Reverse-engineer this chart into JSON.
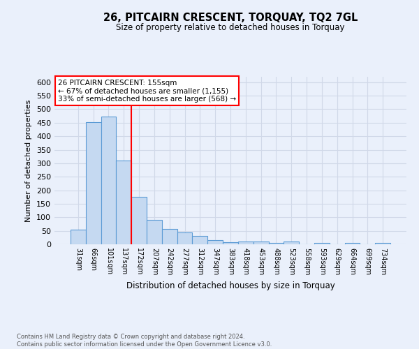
{
  "title": "26, PITCAIRN CRESCENT, TORQUAY, TQ2 7GL",
  "subtitle": "Size of property relative to detached houses in Torquay",
  "xlabel": "Distribution of detached houses by size in Torquay",
  "ylabel": "Number of detached properties",
  "footer_line1": "Contains HM Land Registry data © Crown copyright and database right 2024.",
  "footer_line2": "Contains public sector information licensed under the Open Government Licence v3.0.",
  "bin_labels": [
    "31sqm",
    "66sqm",
    "101sqm",
    "137sqm",
    "172sqm",
    "207sqm",
    "242sqm",
    "277sqm",
    "312sqm",
    "347sqm",
    "383sqm",
    "418sqm",
    "453sqm",
    "488sqm",
    "523sqm",
    "558sqm",
    "593sqm",
    "629sqm",
    "664sqm",
    "699sqm",
    "734sqm"
  ],
  "bar_values": [
    54,
    453,
    473,
    311,
    175,
    90,
    58,
    43,
    30,
    15,
    9,
    10,
    10,
    5,
    10,
    0,
    5,
    0,
    5,
    0,
    5
  ],
  "bar_color": "#c5d9f1",
  "bar_edge_color": "#5b9bd5",
  "grid_color": "#d0d8e8",
  "background_color": "#eaf0fb",
  "red_line_x": 3.5,
  "annotation_line1": "26 PITCAIRN CRESCENT: 155sqm",
  "annotation_line2": "← 67% of detached houses are smaller (1,155)",
  "annotation_line3": "33% of semi-detached houses are larger (568) →",
  "annotation_box_color": "white",
  "annotation_box_edge": "red",
  "ylim": [
    0,
    620
  ],
  "yticks": [
    0,
    50,
    100,
    150,
    200,
    250,
    300,
    350,
    400,
    450,
    500,
    550,
    600
  ]
}
